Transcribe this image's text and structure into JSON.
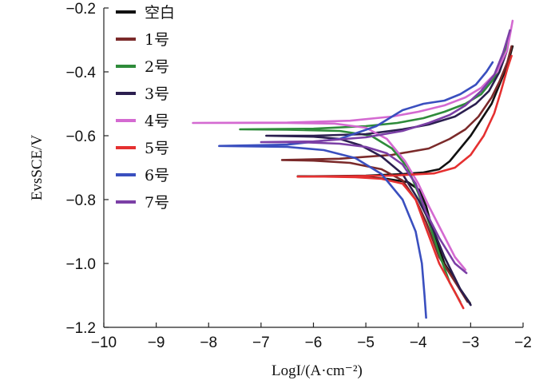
{
  "chart_data": {
    "type": "line",
    "title": "",
    "xlabel": "LogI/(A·cm⁻²)",
    "ylabel": "EvsSCE/V",
    "xlim": [
      -10,
      -2
    ],
    "ylim": [
      -1.2,
      -0.2
    ],
    "xticks": [
      -10,
      -9,
      -8,
      -7,
      -6,
      -5,
      -4,
      -3,
      -2
    ],
    "xtick_labels": [
      "−10",
      "−9",
      "−8",
      "−7",
      "−6",
      "−5",
      "−4",
      "−3",
      "−2"
    ],
    "yticks": [
      -1.2,
      -1.0,
      -0.8,
      -0.6,
      -0.4,
      -0.2
    ],
    "ytick_labels": [
      "−1.2",
      "−1.0",
      "−0.8",
      "−0.6",
      "−0.4",
      "−0.2"
    ],
    "grid": false,
    "legend_position": "top-left",
    "series": [
      {
        "name": "空白",
        "color": "#111111",
        "x": [
          -3.01,
          -3.2,
          -3.5,
          -3.72,
          -3.85,
          -3.98,
          -4.2,
          -4.6,
          -5.0,
          -5.5,
          -6.0,
          -6.3,
          -6.0,
          -5.0,
          -4.3,
          -3.9,
          -3.6,
          -3.4,
          -3.2,
          -3.0,
          -2.8,
          -2.6,
          -2.45,
          -2.3,
          -2.2
        ],
        "y": [
          -1.125,
          -1.08,
          -1.0,
          -0.9,
          -0.82,
          -0.77,
          -0.745,
          -0.735,
          -0.73,
          -0.728,
          -0.727,
          -0.727,
          -0.727,
          -0.725,
          -0.72,
          -0.715,
          -0.705,
          -0.68,
          -0.64,
          -0.6,
          -0.55,
          -0.5,
          -0.44,
          -0.38,
          -0.32
        ]
      },
      {
        "name": "1号",
        "color": "#7b2a2a",
        "x": [
          -3.06,
          -3.25,
          -3.6,
          -3.85,
          -4.05,
          -4.3,
          -4.7,
          -5.3,
          -6.0,
          -6.6,
          -5.5,
          -4.5,
          -3.8,
          -3.4,
          -3.1,
          -2.85,
          -2.6,
          -2.45,
          -2.3,
          -2.22
        ],
        "y": [
          -1.12,
          -1.07,
          -0.98,
          -0.87,
          -0.8,
          -0.74,
          -0.705,
          -0.685,
          -0.678,
          -0.676,
          -0.672,
          -0.66,
          -0.64,
          -0.61,
          -0.58,
          -0.54,
          -0.48,
          -0.43,
          -0.37,
          -0.32
        ]
      },
      {
        "name": "2号",
        "color": "#2e8b3a",
        "x": [
          -3.2,
          -3.4,
          -3.6,
          -3.8,
          -4.0,
          -4.2,
          -4.5,
          -4.9,
          -5.5,
          -6.5,
          -7.4,
          -6.0,
          -5.0,
          -4.4,
          -3.9,
          -3.5,
          -3.1,
          -2.8,
          -2.55,
          -2.35,
          -2.25
        ],
        "y": [
          -1.12,
          -1.06,
          -0.97,
          -0.87,
          -0.78,
          -0.7,
          -0.64,
          -0.6,
          -0.585,
          -0.581,
          -0.58,
          -0.578,
          -0.57,
          -0.56,
          -0.545,
          -0.525,
          -0.5,
          -0.47,
          -0.42,
          -0.34,
          -0.27
        ]
      },
      {
        "name": "3号",
        "color": "#2b1f4f",
        "x": [
          -3.0,
          -3.2,
          -3.5,
          -3.75,
          -4.0,
          -4.3,
          -4.7,
          -5.1,
          -5.5,
          -6.0,
          -6.9,
          -6.0,
          -5.0,
          -4.3,
          -3.8,
          -3.3,
          -2.9,
          -2.65,
          -2.45,
          -2.3
        ],
        "y": [
          -1.13,
          -1.08,
          -0.98,
          -0.88,
          -0.8,
          -0.72,
          -0.665,
          -0.63,
          -0.61,
          -0.603,
          -0.6,
          -0.6,
          -0.595,
          -0.58,
          -0.565,
          -0.54,
          -0.5,
          -0.46,
          -0.4,
          -0.33
        ]
      },
      {
        "name": "4号",
        "color": "#d46ad1",
        "x": [
          -3.1,
          -3.3,
          -3.55,
          -3.8,
          -4.0,
          -4.25,
          -4.6,
          -5.0,
          -5.6,
          -6.5,
          -8.3,
          -6.5,
          -5.3,
          -4.5,
          -4.0,
          -3.5,
          -3.1,
          -2.8,
          -2.5,
          -2.3,
          -2.2
        ],
        "y": [
          -1.02,
          -0.98,
          -0.9,
          -0.82,
          -0.75,
          -0.68,
          -0.61,
          -0.575,
          -0.562,
          -0.56,
          -0.56,
          -0.559,
          -0.553,
          -0.54,
          -0.525,
          -0.505,
          -0.48,
          -0.45,
          -0.4,
          -0.33,
          -0.24
        ]
      },
      {
        "name": "5号",
        "color": "#e53030",
        "x": [
          -3.14,
          -3.3,
          -3.6,
          -3.85,
          -4.05,
          -4.3,
          -4.7,
          -5.2,
          -5.8,
          -6.3,
          -5.5,
          -4.5,
          -3.7,
          -3.3,
          -3.0,
          -2.75,
          -2.55,
          -2.42,
          -2.3,
          -2.22
        ],
        "y": [
          -1.14,
          -1.09,
          -1.0,
          -0.89,
          -0.8,
          -0.75,
          -0.735,
          -0.73,
          -0.728,
          -0.728,
          -0.727,
          -0.725,
          -0.718,
          -0.7,
          -0.66,
          -0.6,
          -0.53,
          -0.46,
          -0.39,
          -0.35
        ]
      },
      {
        "name": "6号",
        "color": "#3a4fbf",
        "x": [
          -3.85,
          -3.88,
          -3.93,
          -4.05,
          -4.3,
          -4.7,
          -5.2,
          -5.8,
          -6.5,
          -7.8,
          -6.5,
          -5.5,
          -4.8,
          -4.3,
          -3.9,
          -3.5,
          -3.2,
          -2.9,
          -2.7,
          -2.58
        ],
        "y": [
          -1.17,
          -1.1,
          -1.0,
          -0.9,
          -0.8,
          -0.72,
          -0.67,
          -0.645,
          -0.635,
          -0.632,
          -0.628,
          -0.61,
          -0.57,
          -0.52,
          -0.5,
          -0.49,
          -0.47,
          -0.44,
          -0.4,
          -0.37
        ]
      },
      {
        "name": "7号",
        "color": "#7b3fa6",
        "x": [
          -3.08,
          -3.3,
          -3.6,
          -3.85,
          -4.05,
          -4.3,
          -4.6,
          -5.0,
          -5.5,
          -6.1,
          -7.0,
          -6.0,
          -5.0,
          -4.3,
          -3.8,
          -3.4,
          -3.1,
          -2.8,
          -2.55,
          -2.38,
          -2.25
        ],
        "y": [
          -1.03,
          -1.0,
          -0.92,
          -0.84,
          -0.75,
          -0.69,
          -0.655,
          -0.635,
          -0.625,
          -0.621,
          -0.62,
          -0.618,
          -0.605,
          -0.585,
          -0.56,
          -0.535,
          -0.505,
          -0.46,
          -0.41,
          -0.34,
          -0.27
        ]
      }
    ]
  }
}
